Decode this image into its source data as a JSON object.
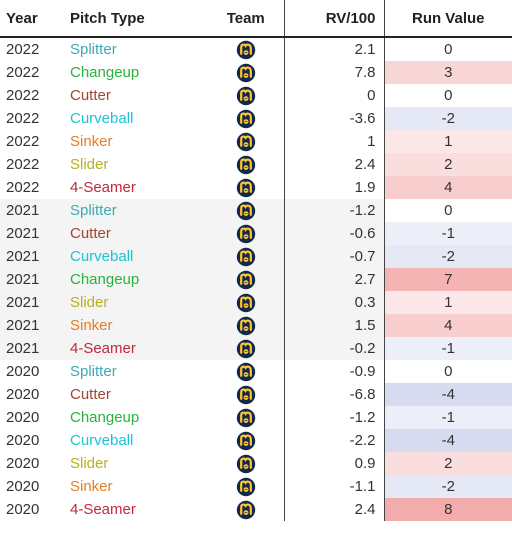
{
  "headers": {
    "year": "Year",
    "pitch_type": "Pitch Type",
    "team": "Team",
    "rv100": "RV/100",
    "run_value": "Run Value"
  },
  "team_icon": "brewers-ball-in-glove-logo",
  "pitch_colors": {
    "Splitter": "#3fa9b5",
    "Changeup": "#27b33c",
    "Cutter": "#a0452f",
    "Curveball": "#1cc4d6",
    "Sinker": "#e67e22",
    "Slider": "#b7b21d",
    "4-Seamer": "#c0283d"
  },
  "rows": [
    {
      "year": "2022",
      "pitch": "Splitter",
      "rv100": "2.1",
      "run_value": "0",
      "shaded": false
    },
    {
      "year": "2022",
      "pitch": "Changeup",
      "rv100": "7.8",
      "run_value": "3",
      "shaded": false
    },
    {
      "year": "2022",
      "pitch": "Cutter",
      "rv100": "0",
      "run_value": "0",
      "shaded": false
    },
    {
      "year": "2022",
      "pitch": "Curveball",
      "rv100": "-3.6",
      "run_value": "-2",
      "shaded": false
    },
    {
      "year": "2022",
      "pitch": "Sinker",
      "rv100": "1",
      "run_value": "1",
      "shaded": false
    },
    {
      "year": "2022",
      "pitch": "Slider",
      "rv100": "2.4",
      "run_value": "2",
      "shaded": false
    },
    {
      "year": "2022",
      "pitch": "4-Seamer",
      "rv100": "1.9",
      "run_value": "4",
      "shaded": false
    },
    {
      "year": "2021",
      "pitch": "Splitter",
      "rv100": "-1.2",
      "run_value": "0",
      "shaded": true
    },
    {
      "year": "2021",
      "pitch": "Cutter",
      "rv100": "-0.6",
      "run_value": "-1",
      "shaded": true
    },
    {
      "year": "2021",
      "pitch": "Curveball",
      "rv100": "-0.7",
      "run_value": "-2",
      "shaded": true
    },
    {
      "year": "2021",
      "pitch": "Changeup",
      "rv100": "2.7",
      "run_value": "7",
      "shaded": true
    },
    {
      "year": "2021",
      "pitch": "Slider",
      "rv100": "0.3",
      "run_value": "1",
      "shaded": true
    },
    {
      "year": "2021",
      "pitch": "Sinker",
      "rv100": "1.5",
      "run_value": "4",
      "shaded": true
    },
    {
      "year": "2021",
      "pitch": "4-Seamer",
      "rv100": "-0.2",
      "run_value": "-1",
      "shaded": true
    },
    {
      "year": "2020",
      "pitch": "Splitter",
      "rv100": "-0.9",
      "run_value": "0",
      "shaded": false
    },
    {
      "year": "2020",
      "pitch": "Cutter",
      "rv100": "-6.8",
      "run_value": "-4",
      "shaded": false
    },
    {
      "year": "2020",
      "pitch": "Changeup",
      "rv100": "-1.2",
      "run_value": "-1",
      "shaded": false
    },
    {
      "year": "2020",
      "pitch": "Curveball",
      "rv100": "-2.2",
      "run_value": "-4",
      "shaded": false
    },
    {
      "year": "2020",
      "pitch": "Slider",
      "rv100": "0.9",
      "run_value": "2",
      "shaded": false
    },
    {
      "year": "2020",
      "pitch": "Sinker",
      "rv100": "-1.1",
      "run_value": "-2",
      "shaded": false
    },
    {
      "year": "2020",
      "pitch": "4-Seamer",
      "rv100": "2.4",
      "run_value": "8",
      "shaded": false
    }
  ]
}
